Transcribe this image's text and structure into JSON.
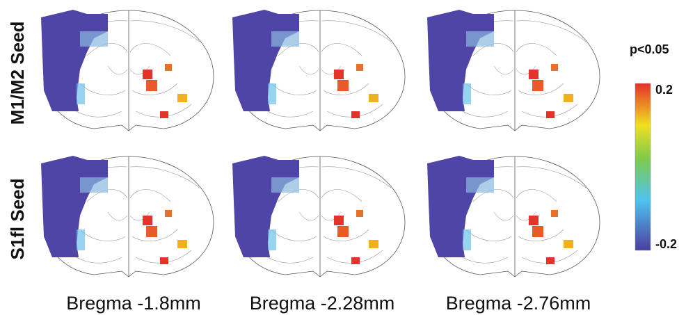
{
  "rows": [
    "M1/M2 Seed",
    "S1fl Seed"
  ],
  "columns": [
    "Bregma -1.8mm",
    "Bregma -2.28mm",
    "Bregma -2.76mm"
  ],
  "colorbar": {
    "title": "p<0.05",
    "max": 0.2,
    "min": -0.2
  }
}
